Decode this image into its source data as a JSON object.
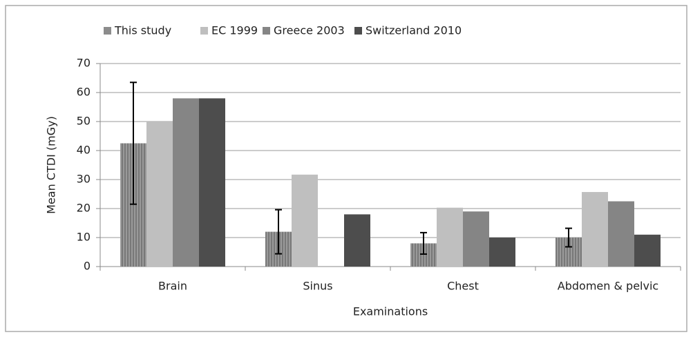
{
  "chart_data": {
    "type": "bar",
    "categories": [
      "Brain",
      "Sinus",
      "Chest",
      "Abdomen & pelvic"
    ],
    "series": [
      {
        "name": "This study",
        "color": "#8c8c8c",
        "values": [
          42.5,
          12,
          8,
          10
        ],
        "errors": [
          21,
          7.6,
          3.7,
          3.2
        ]
      },
      {
        "name": "EC 1999",
        "color": "#bfbfbf",
        "values": [
          50,
          31.7,
          20.3,
          25.7
        ]
      },
      {
        "name": "Greece 2003",
        "color": "#858585",
        "values": [
          58,
          null,
          19,
          22.5
        ]
      },
      {
        "name": "Switzerland 2010",
        "color": "#4d4d4d",
        "values": [
          58,
          18,
          10,
          11
        ]
      }
    ],
    "ylabel": "Mean CTDI (mGy)",
    "xlabel": "Examinations",
    "ylim": [
      0,
      70
    ],
    "yticks": [
      0,
      10,
      20,
      30,
      40,
      50,
      60,
      70
    ],
    "grid": true,
    "legend": "top"
  }
}
